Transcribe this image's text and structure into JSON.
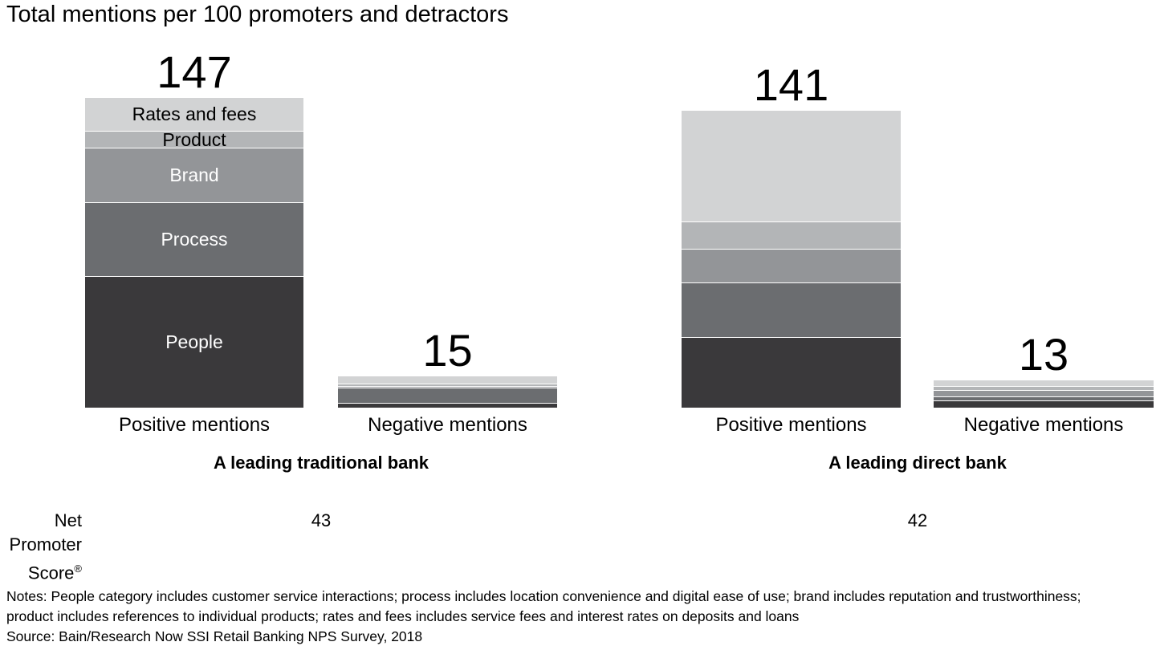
{
  "title": "Total mentions per 100 promoters and detractors",
  "chart_data": {
    "type": "bar",
    "stacked": true,
    "title": "Total mentions per 100 promoters and detractors",
    "value_unit": "mentions per 100 promoters and detractors",
    "axis_hidden": true,
    "grid": false,
    "legend": "labels inside first bar",
    "segments_top_to_bottom": [
      {
        "name": "Rates and fees",
        "color": "#d2d3d4",
        "label_color": "#000000"
      },
      {
        "name": "Product",
        "color": "#b3b5b7",
        "label_color": "#000000"
      },
      {
        "name": "Brand",
        "color": "#939598",
        "label_color": "#ffffff"
      },
      {
        "name": "Process",
        "color": "#6b6d70",
        "label_color": "#ffffff"
      },
      {
        "name": "People",
        "color": "#3a393b",
        "label_color": "#ffffff"
      }
    ],
    "groups": [
      {
        "label": "A leading traditional bank",
        "net_promoter_score": 43,
        "bars": [
          {
            "label": "Positive mentions",
            "total": 147,
            "show_segment_labels": true,
            "segments": [
              {
                "name": "Rates and fees",
                "value": 16
              },
              {
                "name": "Product",
                "value": 8
              },
              {
                "name": "Brand",
                "value": 26
              },
              {
                "name": "Process",
                "value": 35
              },
              {
                "name": "People",
                "value": 62
              }
            ]
          },
          {
            "label": "Negative mentions",
            "total": 15,
            "show_segment_labels": false,
            "segments": [
              {
                "name": "Rates and fees",
                "value": 4
              },
              {
                "name": "Product",
                "value": 1
              },
              {
                "name": "Brand",
                "value": 1
              },
              {
                "name": "Process",
                "value": 7
              },
              {
                "name": "People",
                "value": 2
              }
            ]
          }
        ]
      },
      {
        "label": "A leading direct bank",
        "net_promoter_score": 42,
        "bars": [
          {
            "label": "Positive mentions",
            "total": 141,
            "show_segment_labels": false,
            "segments": [
              {
                "name": "Rates and fees",
                "value": 53
              },
              {
                "name": "Product",
                "value": 13
              },
              {
                "name": "Brand",
                "value": 16
              },
              {
                "name": "Process",
                "value": 26
              },
              {
                "name": "People",
                "value": 33
              }
            ]
          },
          {
            "label": "Negative mentions",
            "total": 13,
            "show_segment_labels": false,
            "segments": [
              {
                "name": "Rates and fees",
                "value": 3
              },
              {
                "name": "Product",
                "value": 2
              },
              {
                "name": "Brand",
                "value": 3
              },
              {
                "name": "Process",
                "value": 2
              },
              {
                "name": "People",
                "value": 3
              }
            ]
          }
        ]
      }
    ]
  },
  "nps": {
    "line1": "Net",
    "line2": "Promoter",
    "line3_word": "Score",
    "reg_mark": "®"
  },
  "footer": {
    "notes": "Notes: People category includes customer service interactions; process includes location convenience and digital ease of use; brand includes reputation and trustworthiness; product includes references to individual products; rates and fees includes service fees and interest rates on deposits and loans",
    "source": "Source: Bain/Research Now SSI Retail Banking NPS Survey, 2018"
  }
}
